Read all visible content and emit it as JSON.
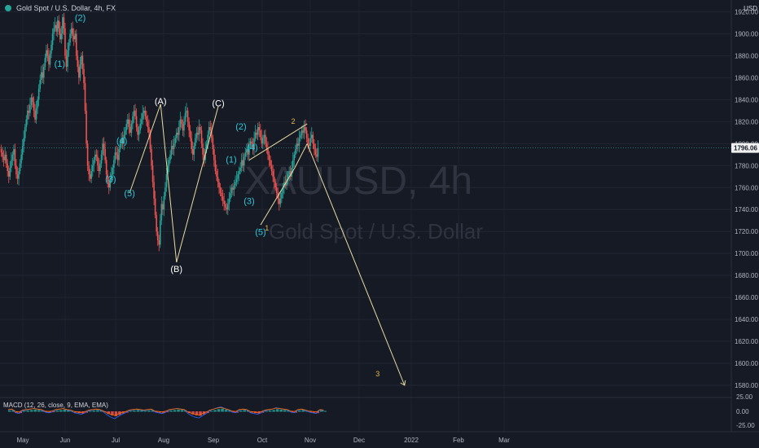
{
  "header": {
    "symbol_title": "Gold Spot / U.S. Dollar, 4h, FX"
  },
  "axis": {
    "currency": "USD"
  },
  "price_tag": "1796.06",
  "watermark": {
    "ticker": "XAUUSD, 4h",
    "description": "Gold Spot / U.S. Dollar"
  },
  "macd": {
    "label": "MACD (12, 26, close, 9, EMA, EMA)",
    "ticks": [
      "25.00",
      "0.00",
      "-25.00"
    ]
  },
  "colors": {
    "background": "#161a25",
    "up": "#26a69a",
    "down": "#ef5350",
    "wave": "#2ec8d8",
    "projection": "#e8dca0",
    "corrective": "#ffffff",
    "minor_count": "#e6b84c"
  },
  "chart_data": {
    "type": "line",
    "title": "Gold Spot / U.S. Dollar, 4h, FX",
    "xlabel": "",
    "ylabel": "USD",
    "ylim": [
      1565,
      1925
    ],
    "x_ticks": [
      "May",
      "Jun",
      "Jul",
      "Aug",
      "Sep",
      "Oct",
      "Nov",
      "Dec",
      "2022",
      "Feb",
      "Mar"
    ],
    "y_ticks": [
      1580,
      1600,
      1620,
      1640,
      1660,
      1680,
      1700,
      1720,
      1740,
      1760,
      1780,
      1800,
      1820,
      1840,
      1860,
      1880,
      1900,
      1920
    ],
    "series": [
      {
        "values": [
          1795,
          1792,
          1788,
          1785,
          1790,
          1782,
          1775,
          1770,
          1778,
          1785,
          1790,
          1795,
          1780,
          1772,
          1768,
          1775,
          1782,
          1790,
          1798,
          1805,
          1815,
          1822,
          1830,
          1828,
          1835,
          1842,
          1838,
          1830,
          1822,
          1832,
          1840,
          1850,
          1858,
          1865,
          1860,
          1870,
          1878,
          1885,
          1880,
          1872,
          1882,
          1890,
          1900,
          1905,
          1908,
          1902,
          1912,
          1905,
          1895,
          1900,
          1915,
          1905,
          1880,
          1870,
          1885,
          1892,
          1900,
          1905,
          1898,
          1895,
          1900,
          1880,
          1870,
          1860,
          1872,
          1880,
          1868,
          1855,
          1830,
          1800,
          1780,
          1772,
          1768,
          1775,
          1780,
          1785,
          1790,
          1788,
          1780,
          1775,
          1782,
          1790,
          1800,
          1795,
          1785,
          1772,
          1765,
          1760,
          1768,
          1772,
          1778,
          1785,
          1792,
          1790,
          1785,
          1795,
          1800,
          1805,
          1800,
          1808,
          1812,
          1818,
          1822,
          1815,
          1810,
          1818,
          1825,
          1830,
          1825,
          1815,
          1808,
          1812,
          1818,
          1822,
          1828,
          1830,
          1825,
          1820,
          1815,
          1810,
          1795,
          1780,
          1765,
          1750,
          1735,
          1720,
          1712,
          1708,
          1730,
          1745,
          1740,
          1752,
          1760,
          1772,
          1780,
          1785,
          1790,
          1798,
          1795,
          1800,
          1805,
          1810,
          1808,
          1815,
          1822,
          1818,
          1812,
          1820,
          1828,
          1830,
          1820,
          1812,
          1805,
          1795,
          1790,
          1798,
          1805,
          1810,
          1808,
          1815,
          1812,
          1800,
          1790,
          1785,
          1795,
          1800,
          1808,
          1815,
          1812,
          1805,
          1795,
          1785,
          1775,
          1770,
          1765,
          1760,
          1755,
          1752,
          1748,
          1745,
          1742,
          1740,
          1745,
          1750,
          1755,
          1760,
          1758,
          1762,
          1765,
          1768,
          1772,
          1775,
          1778,
          1785,
          1780,
          1788,
          1792,
          1795,
          1790,
          1798,
          1802,
          1800,
          1795,
          1805,
          1810,
          1808,
          1815,
          1812,
          1806,
          1800,
          1805,
          1808,
          1800,
          1795,
          1790,
          1785,
          1780,
          1775,
          1770,
          1765,
          1760,
          1755,
          1750,
          1745,
          1750,
          1755,
          1760,
          1765,
          1762,
          1768,
          1772,
          1775,
          1770,
          1778,
          1785,
          1790,
          1795,
          1800,
          1798,
          1805,
          1808,
          1812,
          1810,
          1815,
          1812,
          1805,
          1800,
          1798,
          1805,
          1808,
          1800,
          1795,
          1790,
          1788,
          1796
        ]
      }
    ],
    "macd_hist": [
      2,
      3,
      -2,
      -3,
      1,
      2,
      3,
      4,
      3,
      2,
      -1,
      -2,
      -1,
      2,
      3,
      4,
      2,
      1,
      -2,
      -3,
      -4,
      -2,
      1,
      2,
      3,
      2,
      -1,
      -5,
      -8,
      -10,
      -7,
      -4,
      -2,
      1,
      2,
      3,
      2,
      1,
      2,
      3,
      -1,
      -2,
      -3,
      -1,
      2,
      3,
      4,
      3,
      2,
      -3,
      -6,
      -8,
      -9,
      -6,
      -3,
      1,
      3,
      5,
      6,
      4,
      2,
      -1,
      -2,
      2,
      3,
      2,
      -2,
      -3,
      -4,
      -2,
      1,
      2,
      3,
      5,
      4,
      3,
      2,
      -1,
      -2,
      2,
      3,
      1,
      -1,
      -2,
      -3,
      2,
      1
    ],
    "elliott_labels": [
      {
        "t": "(1)",
        "x": "2021-05-28",
        "y": 1870,
        "c": "wave"
      },
      {
        "t": "(2)",
        "x": "2021-06-10",
        "y": 1912,
        "c": "wave"
      },
      {
        "t": "(3)",
        "x": "2021-06-28",
        "y": 1765,
        "c": "wave"
      },
      {
        "t": "(4)",
        "x": "2021-07-05",
        "y": 1800,
        "c": "wave"
      },
      {
        "t": "(5)",
        "x": "2021-07-10",
        "y": 1752,
        "c": "wave"
      },
      {
        "t": "(A)",
        "x": "2021-07-30",
        "y": 1836,
        "c": "corrective"
      },
      {
        "t": "(B)",
        "x": "2021-08-09",
        "y": 1683,
        "c": "corrective"
      },
      {
        "t": "(C)",
        "x": "2021-09-04",
        "y": 1834,
        "c": "corrective"
      },
      {
        "t": "(2)",
        "x": "2021-09-18",
        "y": 1813,
        "c": "wave"
      },
      {
        "t": "(1)",
        "x": "2021-09-12",
        "y": 1783,
        "c": "wave"
      },
      {
        "t": "(4)",
        "x": "2021-09-25",
        "y": 1794,
        "c": "wave"
      },
      {
        "t": "(3)",
        "x": "2021-09-23",
        "y": 1745,
        "c": "wave"
      },
      {
        "t": "(5)",
        "x": "2021-09-30",
        "y": 1717,
        "c": "wave"
      },
      {
        "t": "1",
        "x": "2021-10-04",
        "y": 1721,
        "c": "minor_count"
      },
      {
        "t": "2",
        "x": "2021-10-21",
        "y": 1818,
        "c": "minor_count"
      },
      {
        "t": "3",
        "x": "2021-12-12",
        "y": 1588,
        "c": "minor_count"
      }
    ],
    "drawings": [
      {
        "c": "projection",
        "pts": [
          [
            "2021-07-10",
            1755
          ],
          [
            "2021-07-30",
            1836
          ]
        ]
      },
      {
        "c": "projection",
        "pts": [
          [
            "2021-07-30",
            1836
          ],
          [
            "2021-08-09",
            1692
          ]
        ]
      },
      {
        "c": "projection",
        "pts": [
          [
            "2021-08-09",
            1692
          ],
          [
            "2021-09-04",
            1834
          ]
        ]
      },
      {
        "c": "projection",
        "pts": [
          [
            "2021-09-23",
            1785
          ],
          [
            "2021-10-30",
            1818
          ]
        ]
      },
      {
        "c": "projection",
        "pts": [
          [
            "2021-09-30",
            1726
          ],
          [
            "2021-10-22",
            1778
          ]
        ]
      },
      {
        "c": "projection",
        "pts": [
          [
            "2021-10-22",
            1778
          ],
          [
            "2021-10-30",
            1800
          ]
        ]
      },
      {
        "c": "projection",
        "pts": [
          [
            "2021-10-30",
            1800
          ],
          [
            "2021-12-28",
            1580
          ]
        ]
      }
    ]
  }
}
